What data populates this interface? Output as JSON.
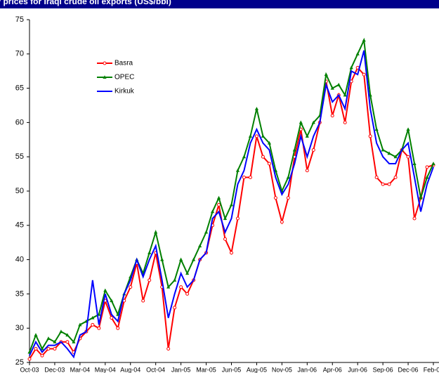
{
  "chart_data": {
    "type": "line",
    "title": "Weekly prices for Iraqi crude oil exports (US$/bbl)",
    "categories": [
      "Oct-03",
      null,
      null,
      null,
      "Dec-03",
      null,
      null,
      null,
      "Mar-04",
      null,
      null,
      null,
      "May-04",
      null,
      null,
      null,
      "Aug-04",
      null,
      null,
      null,
      "Oct-04",
      null,
      null,
      null,
      "Jan-05",
      null,
      null,
      null,
      "Mar-05",
      null,
      null,
      null,
      "Jun-05",
      null,
      null,
      null,
      "Aug-05",
      null,
      null,
      null,
      "Nov-05",
      null,
      null,
      null,
      "Jan-06",
      null,
      null,
      null,
      "Apr-06",
      null,
      null,
      null,
      "Jun-06",
      null,
      null,
      null,
      "Sep-06",
      null,
      null,
      null,
      "Dec-06",
      null,
      null,
      null,
      "Feb-07"
    ],
    "series": [
      {
        "name": "Basra",
        "color": "#ff0000",
        "marker": "circle",
        "values": [
          25.5,
          27,
          26,
          27,
          27,
          28,
          28,
          26.5,
          28.5,
          29.5,
          30.5,
          30,
          34,
          31.5,
          30,
          34,
          36,
          39.5,
          34,
          37,
          41,
          36,
          27,
          33,
          36,
          35,
          37,
          40,
          41,
          45,
          48,
          43,
          41,
          46,
          52,
          52,
          58,
          55,
          54,
          49,
          45.5,
          49,
          55,
          59,
          53,
          56,
          60,
          66,
          61,
          64,
          60,
          66,
          68,
          67,
          58,
          52,
          51,
          51,
          52,
          56,
          55,
          46,
          49,
          53.5,
          53.8
        ]
      },
      {
        "name": "OPEC",
        "color": "#008000",
        "marker": "triangle",
        "values": [
          26.5,
          29,
          27,
          28.5,
          28,
          29.5,
          29,
          28,
          30.5,
          31,
          31.5,
          32,
          35.5,
          34,
          32,
          35,
          37.5,
          40,
          38,
          41,
          44,
          40,
          36,
          37,
          40,
          38,
          40,
          42,
          44,
          47,
          49,
          46,
          48,
          53,
          55,
          58,
          62,
          58,
          57,
          53,
          50,
          52,
          56,
          60,
          58,
          60,
          61,
          67,
          65,
          65.5,
          64,
          68,
          70,
          72,
          64,
          59,
          56,
          55.5,
          55,
          56,
          59,
          54,
          49,
          52,
          54
        ]
      },
      {
        "name": "Kirkuk",
        "color": "#0000ff",
        "marker": "none",
        "values": [
          26,
          28,
          26.5,
          27.5,
          27.5,
          28,
          27,
          25.8,
          29,
          29.5,
          37,
          30.5,
          35,
          32,
          31,
          35,
          37,
          40,
          37.5,
          40,
          42,
          37,
          31.5,
          35,
          38,
          36,
          37,
          40,
          41,
          46,
          47,
          44,
          46,
          51,
          53,
          57,
          59,
          57,
          56,
          52,
          49.5,
          51,
          54,
          58,
          55,
          58,
          60,
          65.5,
          63,
          64,
          62,
          67.5,
          67,
          70.5,
          62,
          57,
          55,
          54,
          54,
          56,
          57,
          52,
          47,
          51,
          53.5
        ]
      }
    ],
    "ylim": [
      25,
      75
    ],
    "yticks": [
      25,
      30,
      35,
      40,
      45,
      50,
      55,
      60,
      65,
      70,
      75
    ]
  }
}
